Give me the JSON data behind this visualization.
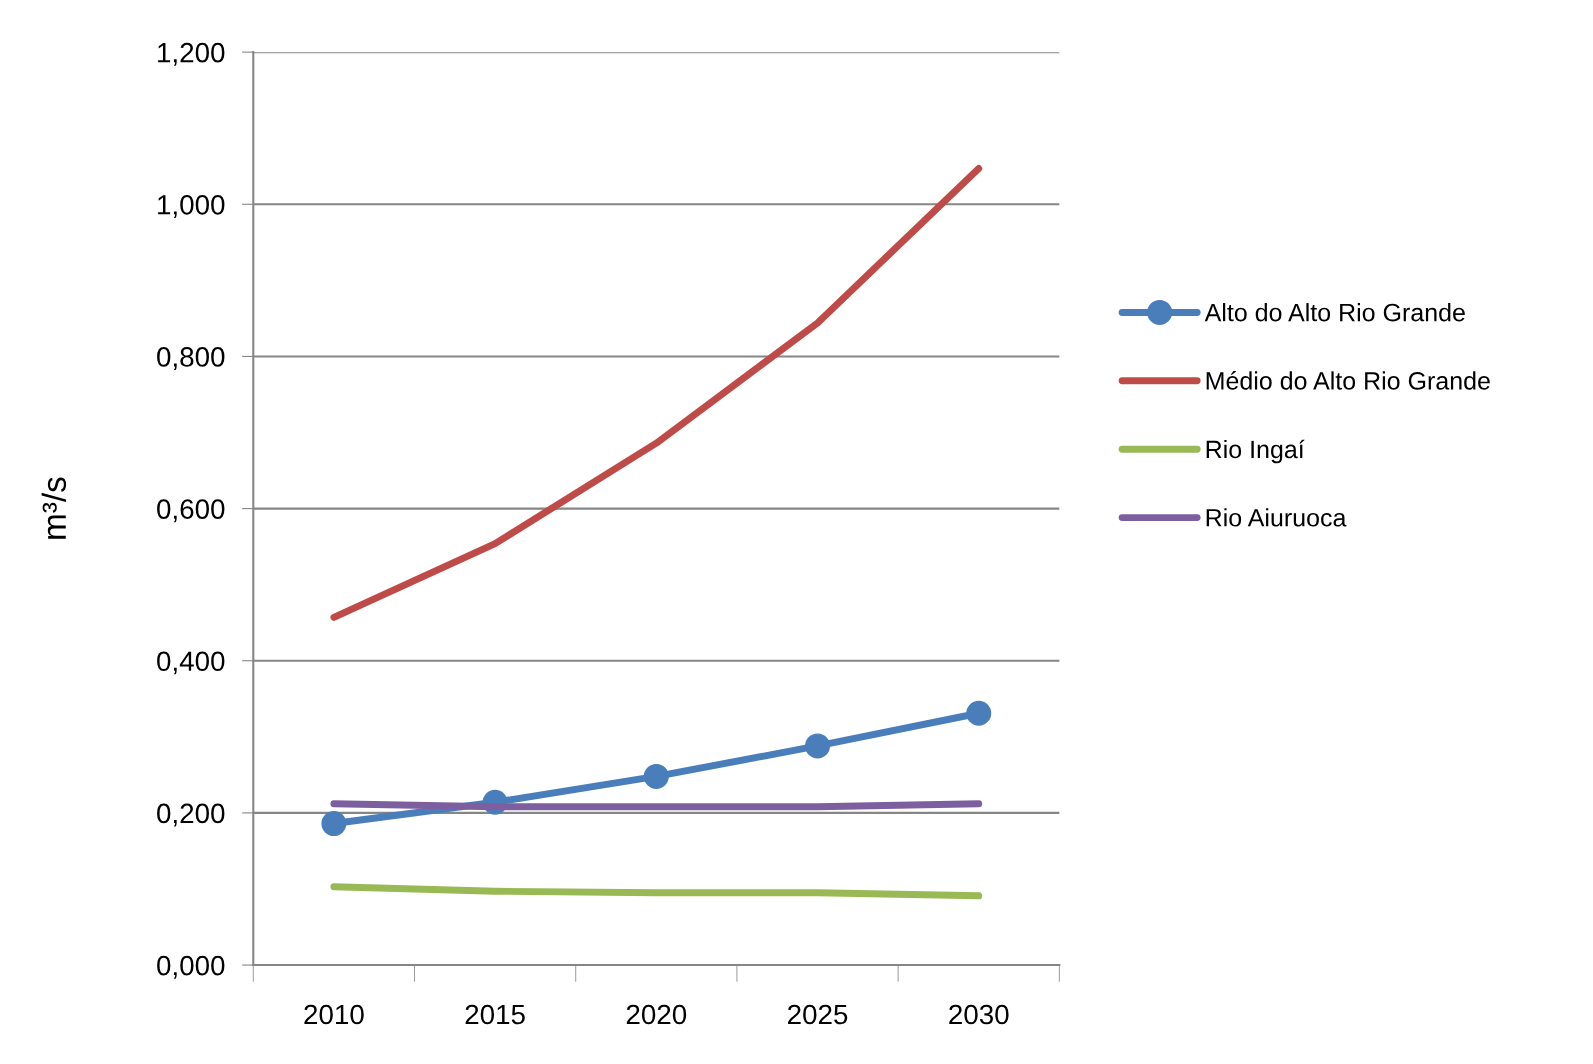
{
  "chart_data": {
    "type": "line",
    "ylabel": "m³/s",
    "categories": [
      "2010",
      "2015",
      "2020",
      "2025",
      "2030"
    ],
    "series": [
      {
        "name": "Alto do Alto Rio Grande",
        "color": "#4a7ebb",
        "marker": "circle",
        "values": [
          0.186,
          0.214,
          0.248,
          0.288,
          0.331
        ]
      },
      {
        "name": "Médio do Alto Rio Grande",
        "color": "#be4b48",
        "marker": "none",
        "values": [
          0.457,
          0.554,
          0.686,
          0.844,
          1.047
        ]
      },
      {
        "name": "Rio Ingaí",
        "color": "#98b954",
        "marker": "none",
        "values": [
          0.103,
          0.097,
          0.095,
          0.095,
          0.091
        ]
      },
      {
        "name": "Rio Aiuruoca",
        "color": "#7d5fa0",
        "marker": "none",
        "values": [
          0.212,
          0.208,
          0.208,
          0.208,
          0.212
        ]
      }
    ],
    "ylim": [
      0,
      1.2
    ],
    "yticks": [
      {
        "value": 0,
        "label": "0,000"
      },
      {
        "value": 0.2,
        "label": "0,200"
      },
      {
        "value": 0.4,
        "label": "0,400"
      },
      {
        "value": 0.6,
        "label": "0,600"
      },
      {
        "value": 0.8,
        "label": "0,800"
      },
      {
        "value": 1.0,
        "label": "1,000"
      },
      {
        "value": 1.2,
        "label": "1,200"
      }
    ],
    "grid": "y",
    "legend": "right",
    "line_style": "solid"
  }
}
